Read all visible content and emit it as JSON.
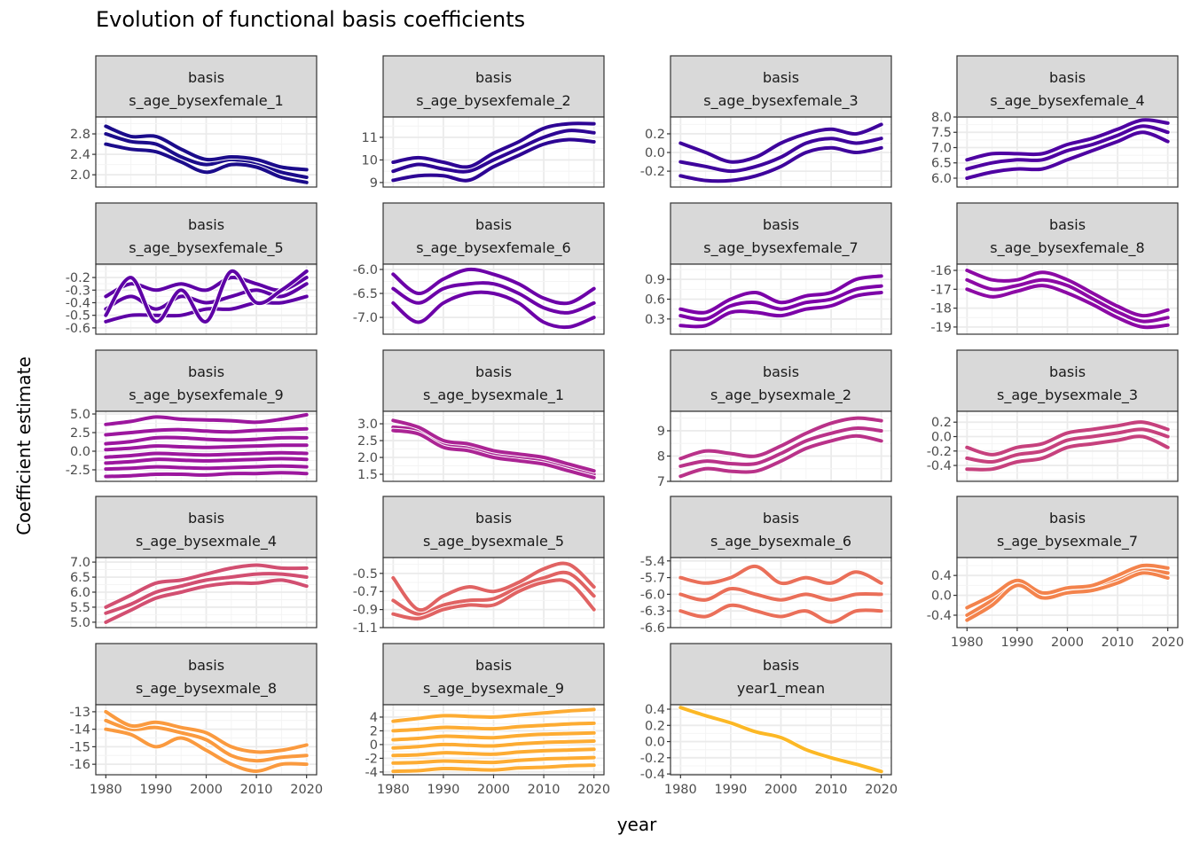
{
  "chart_data": {
    "type": "line",
    "title": "Evolution of functional basis coefficients",
    "xlabel": "year",
    "ylabel": "Coefficient estimate",
    "grid": true,
    "legend": "none",
    "facet_strip_prefix": "basis",
    "x": [
      1980,
      1985,
      1990,
      1995,
      2000,
      2005,
      2010,
      2015,
      2020
    ],
    "xlim": [
      1978,
      2022
    ],
    "xticks": [
      1980,
      1990,
      2000,
      2010,
      2020
    ],
    "xtick_labels": [
      "1980",
      "1990",
      "2000",
      "2010",
      "2020"
    ],
    "panels": [
      {
        "name": "s_age_bysexfemale_1",
        "color": "#1b0c8b",
        "ylim": [
          1.76,
          3.13
        ],
        "yticks": [
          2.0,
          2.4,
          2.8
        ],
        "ytick_labels": [
          "2.0",
          "2.4",
          "2.8"
        ],
        "series": [
          [
            2.8,
            2.65,
            2.6,
            2.35,
            2.2,
            2.3,
            2.2,
            2.05,
            1.95
          ],
          [
            2.95,
            2.75,
            2.75,
            2.5,
            2.3,
            2.35,
            2.3,
            2.15,
            2.1
          ],
          [
            2.6,
            2.5,
            2.45,
            2.25,
            2.05,
            2.2,
            2.15,
            1.95,
            1.85
          ]
        ]
      },
      {
        "name": "s_age_bysexfemale_2",
        "color": "#2d0594",
        "ylim": [
          8.8,
          11.9
        ],
        "yticks": [
          9,
          10,
          11
        ],
        "ytick_labels": [
          "9",
          "10",
          "11"
        ],
        "series": [
          [
            9.5,
            9.8,
            9.6,
            9.5,
            10.0,
            10.5,
            11.0,
            11.3,
            11.2
          ],
          [
            9.9,
            10.1,
            9.9,
            9.7,
            10.3,
            10.8,
            11.4,
            11.6,
            11.6
          ],
          [
            9.1,
            9.3,
            9.3,
            9.1,
            9.7,
            10.2,
            10.7,
            10.9,
            10.8
          ]
        ]
      },
      {
        "name": "s_age_bysexfemale_3",
        "color": "#3e049c",
        "ylim": [
          -0.37,
          0.38
        ],
        "yticks": [
          -0.2,
          0.0,
          0.2
        ],
        "ytick_labels": [
          "-0.2",
          "0.0",
          "0.2"
        ],
        "series": [
          [
            -0.1,
            -0.15,
            -0.2,
            -0.15,
            -0.05,
            0.1,
            0.15,
            0.1,
            0.15
          ],
          [
            0.1,
            0,
            -0.1,
            -0.05,
            0.1,
            0.2,
            0.25,
            0.2,
            0.3
          ],
          [
            -0.25,
            -0.3,
            -0.3,
            -0.25,
            -0.15,
            0.0,
            0.05,
            0.0,
            0.05
          ]
        ]
      },
      {
        "name": "s_age_bysexfemale_4",
        "color": "#4e02a2",
        "ylim": [
          5.71,
          8.0
        ],
        "yticks": [
          6.0,
          6.5,
          7.0,
          7.5,
          8.0
        ],
        "ytick_labels": [
          "6.0",
          "6.5",
          "7.0",
          "7.5",
          "8.0"
        ],
        "series": [
          [
            6.3,
            6.5,
            6.6,
            6.6,
            6.9,
            7.1,
            7.4,
            7.7,
            7.5
          ],
          [
            6.6,
            6.8,
            6.8,
            6.8,
            7.1,
            7.3,
            7.6,
            7.9,
            7.8
          ],
          [
            6.0,
            6.2,
            6.3,
            6.3,
            6.6,
            6.9,
            7.2,
            7.5,
            7.2
          ]
        ]
      },
      {
        "name": "s_age_bysexfemale_5",
        "color": "#5e01a6",
        "ylim": [
          -0.65,
          -0.094
        ],
        "yticks": [
          -0.6,
          -0.5,
          -0.4,
          -0.3,
          -0.2
        ],
        "ytick_labels": [
          "-0.6",
          "-0.5",
          "-0.4",
          "-0.3",
          "-0.2"
        ],
        "series": [
          [
            -0.45,
            -0.35,
            -0.45,
            -0.35,
            -0.4,
            -0.35,
            -0.3,
            -0.35,
            -0.25
          ],
          [
            -0.35,
            -0.25,
            -0.3,
            -0.25,
            -0.3,
            -0.2,
            -0.25,
            -0.3,
            -0.2
          ],
          [
            -0.55,
            -0.5,
            -0.5,
            -0.5,
            -0.45,
            -0.45,
            -0.4,
            -0.4,
            -0.35
          ],
          [
            -0.5,
            -0.2,
            -0.55,
            -0.3,
            -0.55,
            -0.15,
            -0.4,
            -0.3,
            -0.15
          ]
        ]
      },
      {
        "name": "s_age_bysexfemale_6",
        "color": "#6c00a8",
        "ylim": [
          -7.35,
          -5.89
        ],
        "yticks": [
          -7.0,
          -6.5,
          -6.0
        ],
        "ytick_labels": [
          "-7.0",
          "-6.5",
          "-6.0"
        ],
        "series": [
          [
            -6.4,
            -6.7,
            -6.4,
            -6.3,
            -6.3,
            -6.5,
            -6.8,
            -6.9,
            -6.7
          ],
          [
            -6.1,
            -6.5,
            -6.2,
            -6.0,
            -6.1,
            -6.3,
            -6.6,
            -6.7,
            -6.4
          ],
          [
            -6.7,
            -7.1,
            -6.7,
            -6.5,
            -6.5,
            -6.7,
            -7.1,
            -7.2,
            -7.0
          ]
        ]
      },
      {
        "name": "s_age_bysexfemale_7",
        "color": "#7c02a8",
        "ylim": [
          0.07,
          1.13
        ],
        "yticks": [
          0.3,
          0.6,
          0.9
        ],
        "ytick_labels": [
          "0.3",
          "0.6",
          "0.9"
        ],
        "series": [
          [
            0.35,
            0.3,
            0.5,
            0.55,
            0.45,
            0.55,
            0.6,
            0.75,
            0.8
          ],
          [
            0.45,
            0.4,
            0.6,
            0.7,
            0.55,
            0.65,
            0.7,
            0.9,
            0.95
          ],
          [
            0.2,
            0.2,
            0.4,
            0.4,
            0.35,
            0.45,
            0.5,
            0.65,
            0.7
          ]
        ]
      },
      {
        "name": "s_age_bysexfemale_8",
        "color": "#8c0aa5",
        "ylim": [
          -19.38,
          -15.67
        ],
        "yticks": [
          -19,
          -18,
          -17,
          -16
        ],
        "ytick_labels": [
          "-19",
          "-18",
          "-17",
          "-16"
        ],
        "series": [
          [
            -16.5,
            -17,
            -16.8,
            -16.5,
            -16.8,
            -17.5,
            -18.2,
            -18.7,
            -18.5
          ],
          [
            -16.0,
            -16.5,
            -16.5,
            -16.1,
            -16.5,
            -17.2,
            -17.9,
            -18.4,
            -18.1
          ],
          [
            -17.0,
            -17.4,
            -17.1,
            -16.8,
            -17.2,
            -17.8,
            -18.5,
            -19.0,
            -18.9
          ]
        ]
      },
      {
        "name": "s_age_bysexfemale_9",
        "color": "#9c179e",
        "ylim": [
          -4.05,
          5.36
        ],
        "yticks": [
          -2.5,
          0.0,
          2.5,
          5.0
        ],
        "ytick_labels": [
          "-2.5",
          "0.0",
          "2.5",
          "5.0"
        ],
        "series": [
          [
            3.6,
            4.0,
            4.6,
            4.3,
            4.2,
            4.1,
            3.9,
            4.3,
            4.9
          ],
          [
            2.2,
            2.5,
            2.8,
            2.9,
            2.7,
            2.6,
            2.8,
            2.9,
            3.0
          ],
          [
            1.0,
            1.3,
            1.8,
            1.8,
            1.6,
            1.5,
            1.6,
            1.8,
            1.8
          ],
          [
            0.2,
            0.4,
            0.7,
            0.6,
            0.5,
            0.6,
            0.7,
            0.8,
            0.8
          ],
          [
            -0.8,
            -0.6,
            -0.3,
            -0.4,
            -0.5,
            -0.4,
            -0.3,
            -0.2,
            -0.3
          ],
          [
            -1.6,
            -1.4,
            -1.1,
            -1.2,
            -1.3,
            -1.2,
            -1.1,
            -1.0,
            -1.1
          ],
          [
            -2.4,
            -2.3,
            -2.1,
            -2.2,
            -2.3,
            -2.2,
            -2.1,
            -2.0,
            -2.1
          ],
          [
            -3.4,
            -3.3,
            -3.1,
            -3.1,
            -3.2,
            -3.0,
            -3.0,
            -2.9,
            -3.0
          ]
        ]
      },
      {
        "name": "s_age_bysexmale_1",
        "color": "#ab2494",
        "ylim": [
          1.29,
          3.37
        ],
        "yticks": [
          1.5,
          2.0,
          2.5,
          3.0
        ],
        "ytick_labels": [
          "1.5",
          "2.0",
          "2.5",
          "3.0"
        ],
        "series": [
          [
            2.9,
            2.8,
            2.4,
            2.3,
            2.1,
            2.0,
            1.9,
            1.7,
            1.5
          ],
          [
            3.1,
            2.9,
            2.5,
            2.4,
            2.2,
            2.1,
            2.0,
            1.8,
            1.6
          ],
          [
            2.8,
            2.7,
            2.3,
            2.2,
            2.0,
            1.9,
            1.8,
            1.6,
            1.4
          ]
        ]
      },
      {
        "name": "s_age_bysexmale_2",
        "color": "#b93289",
        "ylim": [
          7.0,
          9.77
        ],
        "yticks": [
          7,
          8,
          9
        ],
        "ytick_labels": [
          "7",
          "8",
          "9"
        ],
        "series": [
          [
            7.6,
            7.8,
            7.7,
            7.7,
            8.1,
            8.6,
            8.9,
            9.1,
            9.0
          ],
          [
            7.9,
            8.2,
            8.1,
            8.0,
            8.4,
            8.9,
            9.3,
            9.5,
            9.4
          ],
          [
            7.2,
            7.5,
            7.4,
            7.4,
            7.8,
            8.3,
            8.6,
            8.8,
            8.6
          ]
        ]
      },
      {
        "name": "s_age_bysexmale_3",
        "color": "#c6417d",
        "ylim": [
          -0.62,
          0.35
        ],
        "yticks": [
          -0.4,
          -0.2,
          0.0,
          0.2
        ],
        "ytick_labels": [
          "-0.4",
          "-0.2",
          "0.0",
          "0.2"
        ],
        "series": [
          [
            -0.3,
            -0.35,
            -0.25,
            -0.2,
            -0.05,
            0.0,
            0.05,
            0.1,
            0.0
          ],
          [
            -0.15,
            -0.25,
            -0.15,
            -0.1,
            0.05,
            0.1,
            0.15,
            0.2,
            0.1
          ],
          [
            -0.45,
            -0.45,
            -0.35,
            -0.3,
            -0.15,
            -0.1,
            -0.05,
            0.0,
            -0.15
          ]
        ]
      },
      {
        "name": "s_age_bysexmale_4",
        "color": "#d24f71",
        "ylim": [
          4.82,
          7.15
        ],
        "yticks": [
          5.0,
          5.5,
          6.0,
          6.5,
          7.0
        ],
        "ytick_labels": [
          "5.0",
          "5.5",
          "6.0",
          "6.5",
          "7.0"
        ],
        "series": [
          [
            5.3,
            5.6,
            6.0,
            6.2,
            6.4,
            6.5,
            6.6,
            6.6,
            6.5
          ],
          [
            5.5,
            5.9,
            6.3,
            6.4,
            6.6,
            6.8,
            6.9,
            6.8,
            6.8
          ],
          [
            5.0,
            5.4,
            5.8,
            6.0,
            6.2,
            6.3,
            6.3,
            6.4,
            6.2
          ]
        ]
      },
      {
        "name": "s_age_bysexmale_5",
        "color": "#e06363",
        "ylim": [
          -1.1,
          -0.325
        ],
        "yticks": [
          -1.1,
          -0.9,
          -0.7,
          -0.5
        ],
        "ytick_labels": [
          "-1.1",
          "-0.9",
          "-0.7",
          "-0.5"
        ],
        "series": [
          [
            -0.8,
            -0.95,
            -0.85,
            -0.8,
            -0.78,
            -0.65,
            -0.55,
            -0.5,
            -0.75
          ],
          [
            -0.55,
            -0.9,
            -0.75,
            -0.65,
            -0.7,
            -0.6,
            -0.45,
            -0.4,
            -0.65
          ],
          [
            -0.95,
            -1.0,
            -0.9,
            -0.85,
            -0.85,
            -0.7,
            -0.6,
            -0.6,
            -0.9
          ]
        ]
      },
      {
        "name": "s_age_bysexmale_6",
        "color": "#ea6f59",
        "ylim": [
          -6.6,
          -5.34
        ],
        "yticks": [
          -6.6,
          -6.3,
          -6.0,
          -5.7,
          -5.4
        ],
        "ytick_labels": [
          "-6.6",
          "-6.3",
          "-6.0",
          "-5.7",
          "-5.4"
        ],
        "series": [
          [
            -6.0,
            -6.1,
            -5.9,
            -6.0,
            -6.1,
            -6.0,
            -6.1,
            -6.0,
            -6.0
          ],
          [
            -5.7,
            -5.8,
            -5.7,
            -5.5,
            -5.8,
            -5.7,
            -5.8,
            -5.6,
            -5.8
          ],
          [
            -6.3,
            -6.4,
            -6.2,
            -6.3,
            -6.4,
            -6.3,
            -6.5,
            -6.3,
            -6.3
          ]
        ]
      },
      {
        "name": "s_age_bysexmale_7",
        "color": "#f3834c",
        "ylim": [
          -0.65,
          0.76
        ],
        "yticks": [
          -0.4,
          0.0,
          0.4
        ],
        "ytick_labels": [
          "-0.4",
          "0.0",
          "0.4"
        ],
        "series": [
          [
            -0.4,
            -0.1,
            0.25,
            0.0,
            0.1,
            0.15,
            0.3,
            0.5,
            0.45
          ],
          [
            -0.25,
            0.0,
            0.3,
            0.05,
            0.15,
            0.2,
            0.4,
            0.6,
            0.55
          ],
          [
            -0.5,
            -0.2,
            0.2,
            -0.05,
            0.05,
            0.1,
            0.25,
            0.45,
            0.35
          ]
        ]
      },
      {
        "name": "s_age_bysexmale_8",
        "color": "#fa9a3f",
        "ylim": [
          -16.6,
          -12.6
        ],
        "yticks": [
          -16,
          -15,
          -14,
          -13
        ],
        "ytick_labels": [
          "-16",
          "-15",
          "-14",
          "-13"
        ],
        "series": [
          [
            -13.5,
            -14.0,
            -13.9,
            -14.2,
            -14.6,
            -15.5,
            -15.8,
            -15.6,
            -15.5
          ],
          [
            -13.0,
            -13.8,
            -13.6,
            -13.9,
            -14.2,
            -15.0,
            -15.3,
            -15.2,
            -14.9
          ],
          [
            -14.0,
            -14.3,
            -15.0,
            -14.5,
            -15.2,
            -16.0,
            -16.4,
            -16.0,
            -16.0
          ]
        ]
      },
      {
        "name": "s_age_bysexmale_9",
        "color": "#fdac33",
        "ylim": [
          -4.4,
          5.8
        ],
        "yticks": [
          -4,
          -2,
          0,
          2,
          4
        ],
        "ytick_labels": [
          "-4",
          "-2",
          "0",
          "2",
          "4"
        ],
        "series": [
          [
            3.4,
            3.8,
            4.2,
            4.1,
            4.0,
            4.3,
            4.6,
            4.9,
            5.1
          ],
          [
            2.0,
            2.2,
            2.5,
            2.4,
            2.3,
            2.6,
            2.8,
            3.0,
            3.1
          ],
          [
            0.7,
            0.9,
            1.2,
            1.1,
            1.0,
            1.3,
            1.5,
            1.6,
            1.7
          ],
          [
            -0.5,
            -0.3,
            0.0,
            -0.1,
            -0.2,
            0.1,
            0.3,
            0.4,
            0.5
          ],
          [
            -1.6,
            -1.5,
            -1.2,
            -1.3,
            -1.4,
            -1.1,
            -0.9,
            -0.8,
            -0.7
          ],
          [
            -2.7,
            -2.6,
            -2.4,
            -2.5,
            -2.6,
            -2.3,
            -2.1,
            -2.0,
            -1.9
          ],
          [
            -3.9,
            -3.8,
            -3.5,
            -3.6,
            -3.7,
            -3.4,
            -3.3,
            -3.1,
            -3.0
          ]
        ]
      },
      {
        "name": "year1_mean",
        "color": "#fcb825",
        "ylim": [
          -0.41,
          0.455
        ],
        "yticks": [
          -0.4,
          -0.2,
          0.0,
          0.2,
          0.4
        ],
        "ytick_labels": [
          "-0.4",
          "-0.2",
          "0.0",
          "0.2",
          "0.4"
        ],
        "series": [
          [
            0.42,
            0.32,
            0.23,
            0.12,
            0.05,
            -0.1,
            -0.2,
            -0.28,
            -0.37
          ]
        ]
      }
    ]
  }
}
